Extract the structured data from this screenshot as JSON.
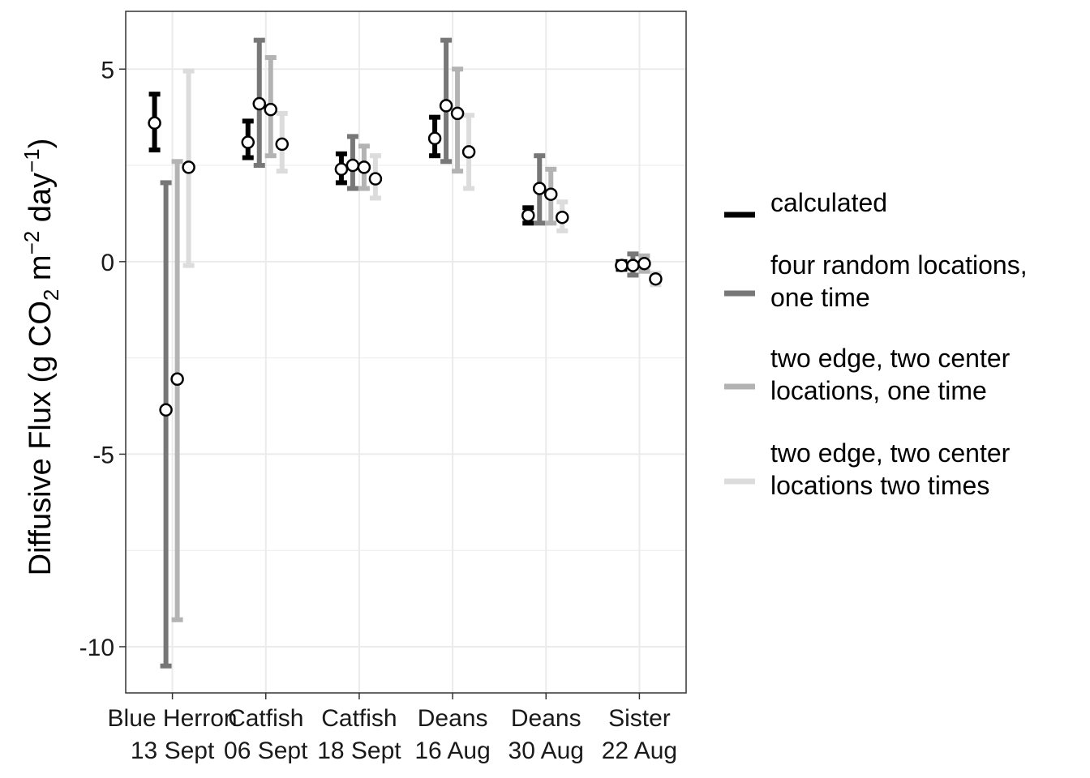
{
  "chart_data": {
    "type": "errorbar",
    "ylabel": {
      "prefix": "Diffusive Flux (g CO",
      "sub": "2",
      "mid1": " m",
      "sup1": "−2",
      "mid2": " day",
      "sup2": "−1",
      "suffix": ")"
    },
    "xlabel": "",
    "ylim": [
      -11.2,
      6.5
    ],
    "yticks": [
      5,
      0,
      -5,
      -10
    ],
    "ytick_labels": [
      "5",
      "0",
      "-5",
      "-10"
    ],
    "grid": true,
    "legend_position": "right",
    "categories": [
      {
        "line1": "Blue Herron",
        "line2": "13 Sept"
      },
      {
        "line1": "Catfish",
        "line2": "06 Sept"
      },
      {
        "line1": "Catfish",
        "line2": "18 Sept"
      },
      {
        "line1": "Deans",
        "line2": "16 Aug"
      },
      {
        "line1": "Deans",
        "line2": "30 Aug"
      },
      {
        "line1": "Sister",
        "line2": "22 Aug"
      }
    ],
    "series": [
      {
        "name": "calculated",
        "legend_lines": [
          "calculated"
        ],
        "color": "#000000",
        "mean": [
          3.6,
          3.1,
          2.4,
          3.2,
          1.2,
          -0.1
        ],
        "low": [
          2.9,
          2.7,
          2.05,
          2.75,
          1.0,
          -0.2
        ],
        "high": [
          4.35,
          3.65,
          2.8,
          3.75,
          1.4,
          0.0
        ]
      },
      {
        "name": "four random locations, one time",
        "legend_lines": [
          "four random locations,",
          "one time"
        ],
        "color": "#777777",
        "mean": [
          -3.85,
          4.1,
          2.5,
          4.05,
          1.9,
          -0.1
        ],
        "low": [
          -10.5,
          2.5,
          1.9,
          2.6,
          1.0,
          -0.35
        ],
        "high": [
          2.05,
          5.75,
          3.25,
          5.75,
          2.75,
          0.2
        ]
      },
      {
        "name": "two edge, two center locations, one time",
        "legend_lines": [
          "two edge, two center",
          "locations, one time"
        ],
        "color": "#b3b3b3",
        "mean": [
          -3.05,
          3.95,
          2.45,
          3.85,
          1.75,
          -0.05
        ],
        "low": [
          -9.3,
          2.75,
          1.9,
          2.35,
          1.0,
          -0.25
        ],
        "high": [
          2.6,
          5.3,
          3.0,
          5.0,
          2.4,
          0.15
        ]
      },
      {
        "name": "two edge, two center locations two times",
        "legend_lines": [
          "two edge, two center",
          "locations two times"
        ],
        "color": "#dcdcdc",
        "mean": [
          2.45,
          3.05,
          2.15,
          2.85,
          1.15,
          -0.45
        ],
        "low": [
          -0.1,
          2.35,
          1.65,
          1.9,
          0.8,
          -0.6
        ],
        "high": [
          4.95,
          3.85,
          2.75,
          3.8,
          1.55,
          -0.3
        ]
      }
    ]
  }
}
